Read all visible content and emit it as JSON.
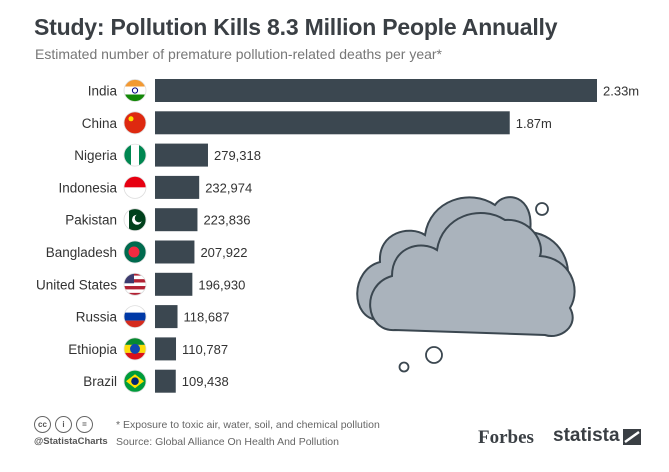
{
  "header": {
    "title": "Study: Pollution Kills 8.3 Million People Annually",
    "subtitle": "Estimated number of premature pollution-related deaths per year*"
  },
  "chart_data": {
    "type": "bar",
    "orientation": "horizontal",
    "title": "Study: Pollution Kills 8.3 Million People Annually",
    "subtitle": "Estimated number of premature pollution-related deaths per year*",
    "categories": [
      "India",
      "China",
      "Nigeria",
      "Indonesia",
      "Pakistan",
      "Bangladesh",
      "United States",
      "Russia",
      "Ethiopia",
      "Brazil"
    ],
    "values": [
      2330000,
      1870000,
      279318,
      232974,
      223836,
      207922,
      196930,
      118687,
      110787,
      109438
    ],
    "value_labels": [
      "2.33m",
      "1.87m",
      "279,318",
      "232,974",
      "223,836",
      "207,922",
      "196,930",
      "118,687",
      "110,787",
      "109,438"
    ],
    "bar_color": "#3b4750",
    "grid": false,
    "legend": "none"
  },
  "footer": {
    "note": "* Exposure to toxic air, water, soil, and chemical pollution",
    "source": "Source: Global Alliance On Health And Pollution",
    "handle": "@StatistaCharts",
    "cc_icons": [
      "cc-icon",
      "attribution-icon",
      "no-derivatives-icon"
    ]
  },
  "brands": {
    "forbes": "Forbes",
    "statista": "statista"
  },
  "decor": {
    "cloud_color": "#aab3bc",
    "cloud_outline": "#3b4750"
  }
}
